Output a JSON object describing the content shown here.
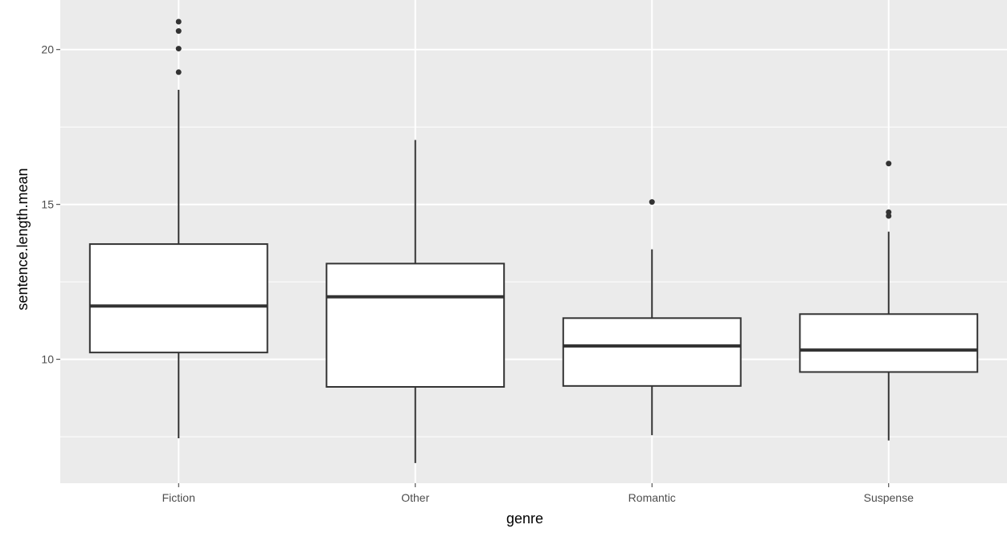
{
  "chart_data": {
    "type": "boxplot",
    "title": "",
    "xlabel": "genre",
    "ylabel": "sentence.length.mean",
    "ylim": [
      6.0,
      21.6
    ],
    "yticks": [
      10,
      15,
      20
    ],
    "ytick_labels": [
      "10",
      "15",
      "20"
    ],
    "grid": true,
    "categories": [
      "Fiction",
      "Other",
      "Romantic",
      "Suspense"
    ],
    "boxes": [
      {
        "category": "Fiction",
        "whisker_low": 7.45,
        "q1": 10.22,
        "median": 11.72,
        "q3": 13.72,
        "whisker_high": 18.7,
        "outliers": [
          19.27,
          20.03,
          20.6,
          20.9
        ]
      },
      {
        "category": "Other",
        "whisker_low": 6.65,
        "q1": 9.11,
        "median": 12.02,
        "q3": 13.09,
        "whisker_high": 17.08,
        "outliers": []
      },
      {
        "category": "Romantic",
        "whisker_low": 7.55,
        "q1": 9.14,
        "median": 10.43,
        "q3": 11.33,
        "whisker_high": 13.55,
        "outliers": [
          15.08
        ]
      },
      {
        "category": "Suspense",
        "whisker_low": 7.38,
        "q1": 9.59,
        "median": 10.3,
        "q3": 11.46,
        "whisker_high": 14.12,
        "outliers": [
          14.63,
          14.75,
          16.32
        ]
      }
    ],
    "colors": {
      "panel": "#ebebeb",
      "grid": "#ffffff",
      "box_fill": "#ffffff",
      "box_line": "#333333",
      "text": "#4d4d4d"
    }
  }
}
